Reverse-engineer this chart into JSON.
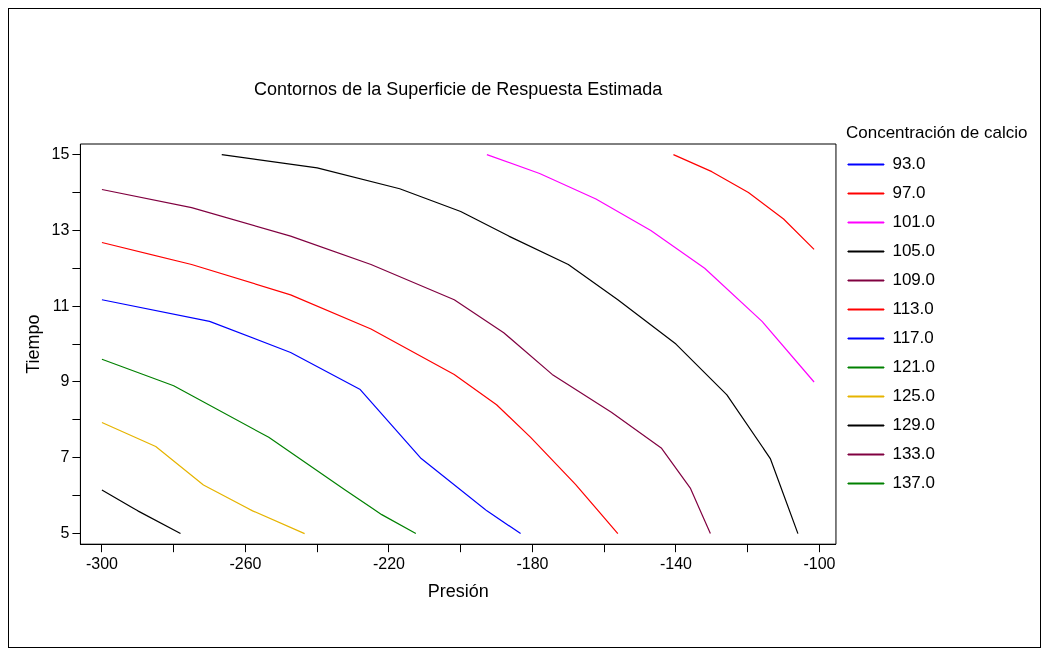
{
  "chart_data": {
    "type": "line",
    "title": "Contornos de la Superficie de Respuesta Estimada",
    "xlabel": "Presión",
    "ylabel": "Tiempo",
    "legend_title": "Concentración de calcio",
    "legend": "right",
    "grid": false,
    "marker": "none",
    "line_style": "solid",
    "xlim": [
      -306,
      -95.4
    ],
    "ylim": [
      4.72,
      15.28
    ],
    "xticks": [
      -300,
      {
        "value": -280,
        "label": null
      },
      -260,
      {
        "value": -240,
        "label": null
      },
      -220,
      {
        "value": -200,
        "label": null
      },
      -180,
      {
        "value": -160,
        "label": null
      },
      -140,
      {
        "value": -120,
        "label": null
      },
      -100
    ],
    "yticks": [
      5,
      {
        "value": 6,
        "label": null
      },
      7,
      {
        "value": 8,
        "label": null
      },
      9,
      {
        "value": 10,
        "label": null
      },
      11,
      {
        "value": 12,
        "label": null
      },
      13,
      {
        "value": 14,
        "label": null
      },
      15
    ],
    "series": [
      {
        "name": "93.0",
        "color": "#0000ff"
      },
      {
        "name": "97.0",
        "color": "#ff0000",
        "x": [
          -140.7,
          -130,
          -119.8,
          -110,
          -101.5
        ],
        "values": [
          15,
          14.55,
          14.0,
          13.3,
          12.5
        ]
      },
      {
        "name": "101.0",
        "color": "#ff00ff",
        "x": [
          -192.7,
          -178,
          -162.3,
          -147,
          -132,
          -116,
          -101.5
        ],
        "values": [
          15,
          14.5,
          13.83,
          13.0,
          12.0,
          10.6,
          9.0
        ]
      },
      {
        "name": "105.0",
        "color": "#000000",
        "x": [
          -266.6,
          -240,
          -217,
          -200,
          -186.6,
          -170,
          -156.2,
          -140,
          -125.8,
          -113.7,
          -106
        ],
        "values": [
          15,
          14.65,
          14.1,
          13.5,
          12.85,
          12.1,
          11.17,
          10.0,
          8.66,
          6.98,
          5
        ]
      },
      {
        "name": "109.0",
        "color": "#800040",
        "x": [
          -300,
          -275,
          -247.4,
          -225,
          -201.8,
          -188,
          -174.5,
          -158,
          -144.1,
          -136,
          -130.4
        ],
        "values": [
          14.08,
          13.6,
          12.85,
          12.1,
          11.17,
          10.3,
          9.2,
          8.2,
          7.26,
          6.2,
          5
        ]
      },
      {
        "name": "113.0",
        "color": "#ff0000",
        "x": [
          -300,
          -275,
          -247.4,
          -225,
          -201.8,
          -190,
          -180.5,
          -168,
          -156.2
        ],
        "values": [
          12.68,
          12.1,
          11.3,
          10.4,
          9.2,
          8.4,
          7.54,
          6.3,
          5
        ]
      },
      {
        "name": "117.0",
        "color": "#0000ff",
        "x": [
          -300,
          -270,
          -247.4,
          -228,
          -211,
          -192.7,
          -183.3
        ],
        "values": [
          11.17,
          10.6,
          9.78,
          8.8,
          6.98,
          5.6,
          5
        ]
      },
      {
        "name": "121.0",
        "color": "#008000",
        "x": [
          -300,
          -280,
          -253.5,
          -232.2,
          -222,
          -212.5
        ],
        "values": [
          9.6,
          8.9,
          7.54,
          6.15,
          5.5,
          5
        ]
      },
      {
        "name": "125.0",
        "color": "#e6b400",
        "x": [
          -300,
          -285,
          -271.7,
          -258,
          -243.5
        ],
        "values": [
          7.93,
          7.3,
          6.28,
          5.6,
          5
        ]
      },
      {
        "name": "129.0",
        "color": "#000000",
        "x": [
          -300,
          -290,
          -278.1
        ],
        "values": [
          6.15,
          5.6,
          5
        ]
      },
      {
        "name": "133.0",
        "color": "#800040"
      },
      {
        "name": "137.0",
        "color": "#008000"
      }
    ]
  }
}
